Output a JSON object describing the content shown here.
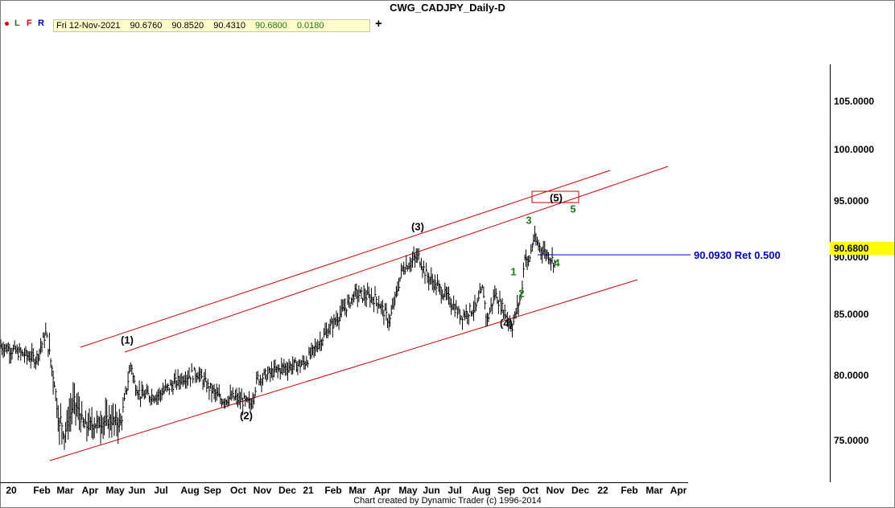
{
  "window": {
    "title": "CWG_CADJPY_Daily-D"
  },
  "toolbar": {
    "letters": [
      "L",
      "F",
      "R"
    ],
    "info": {
      "date": "Fri 12-Nov-2021",
      "open": "90.6760",
      "high": "90.8520",
      "low": "90.4310",
      "close": "90.6800",
      "change": "0.0180"
    },
    "plus": "+"
  },
  "axis": {
    "y_labels": [
      "105.0000",
      "100.0000",
      "95.0000",
      "90.0000",
      "85.0000",
      "80.0000",
      "75.0000"
    ],
    "current_price": "90.6800",
    "x_labels": [
      "20",
      "Feb",
      "Mar",
      "Apr",
      "May",
      "Jun",
      "Jul",
      "Aug",
      "Sep",
      "Oct",
      "Nov",
      "Dec",
      "21",
      "Feb",
      "Mar",
      "Apr",
      "May",
      "Jun",
      "Jul",
      "Aug",
      "Sep",
      "Oct",
      "Nov",
      "Dec",
      "22",
      "Feb",
      "Mar",
      "Apr"
    ]
  },
  "annotations": {
    "wave_labels": [
      "(1)",
      "(2)",
      "(3)",
      "(4)",
      "(5)",
      "1",
      "2",
      "3",
      "4",
      "5"
    ],
    "retracement": "90.0930 Ret 0.500"
  },
  "footer": "Chart created by Dynamic Trader  (c)  1996-2014",
  "colors": {
    "channel": "#cc0000",
    "retracement": "#0000cc",
    "minor_wave": "#1a7a1a",
    "price_box": "#ffff00"
  },
  "chart_data": {
    "type": "ohlc",
    "title": "CWG_CADJPY_Daily-D",
    "ylim": [
      72.5,
      108.5
    ],
    "y_ticks": [
      75,
      80,
      85,
      90,
      95,
      100,
      105
    ],
    "last_bar": {
      "date": "2021-11-12",
      "open": 90.676,
      "high": 90.852,
      "low": 90.431,
      "close": 90.68
    },
    "series": [
      {
        "name": "CADJPY",
        "x": [
          "2020-01",
          "2020-02",
          "2020-03",
          "2020-04",
          "2020-05",
          "2020-06",
          "2020-07",
          "2020-08",
          "2020-09",
          "2020-10",
          "2020-11",
          "2020-12",
          "2021-01",
          "2021-02",
          "2021-03",
          "2021-04",
          "2021-05",
          "2021-06",
          "2021-07",
          "2021-08",
          "2021-09",
          "2021-10",
          "2021-11"
        ],
        "values": [
          83.4,
          82.2,
          77.0,
          76.2,
          76.8,
          80.2,
          79.0,
          80.6,
          79.8,
          78.8,
          80.5,
          81.4,
          81.8,
          84.8,
          87.6,
          87.5,
          90.2,
          89.6,
          87.3,
          86.8,
          87.0,
          91.5,
          90.68
        ]
      }
    ],
    "wave_points": [
      {
        "label": "(1)",
        "x": "2020-06-05",
        "y": 81.9
      },
      {
        "label": "(2)",
        "x": "2020-11-02",
        "y": 78.2
      },
      {
        "label": "(3)",
        "x": "2021-05-18",
        "y": 91.2
      },
      {
        "label": "(4)",
        "x": "2021-09-20",
        "y": 84.8
      },
      {
        "label": "(5)",
        "x": "2021-11-26",
        "y": 95.5
      }
    ],
    "retracement_level": 90.093
  }
}
